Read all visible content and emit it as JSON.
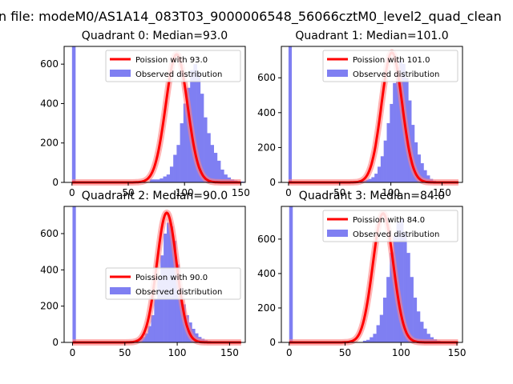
{
  "figure_title": "n file: modeM0/AS1A14_083T03_9000006548_56066cztM0_level2_quad_clean",
  "colors": {
    "hist_fill": "#7f7ff2",
    "curve": "#ff0000",
    "curve_glow": "#ff8080",
    "axis": "#000000",
    "legend_border": "#cccccc"
  },
  "chart_data": [
    {
      "type": "bar",
      "title": "Quadrant 0: Median=93.0",
      "median": 93.0,
      "legend": [
        "Poission with 93.0",
        "Observed distribution"
      ],
      "legend_position": "upper-right",
      "xlim": [
        -7,
        154
      ],
      "ylim": [
        0,
        690
      ],
      "xticks": [
        0,
        50,
        100,
        150
      ],
      "yticks": [
        0,
        200,
        400,
        600
      ],
      "bins": {
        "start": 0,
        "width": 3,
        "counts": [
          690,
          0,
          0,
          0,
          0,
          0,
          0,
          0,
          0,
          0,
          0,
          0,
          0,
          0,
          0,
          0,
          0,
          0,
          0,
          0,
          0,
          0,
          0,
          15,
          15,
          15,
          20,
          30,
          40,
          80,
          140,
          190,
          300,
          400,
          480,
          570,
          600,
          560,
          450,
          330,
          250,
          190,
          150,
          110,
          65,
          40,
          25,
          15,
          10,
          6,
          4
        ]
      },
      "poisson_mean": 93.0,
      "poisson_peak": 650
    },
    {
      "type": "bar",
      "title": "Quadrant 1: Median=101.0",
      "median": 101.0,
      "legend": [
        "Poission with 101.0",
        "Observed distribution"
      ],
      "legend_position": "upper-right",
      "xlim": [
        -7,
        170
      ],
      "ylim": [
        0,
        780
      ],
      "xticks": [
        0,
        50,
        100,
        150
      ],
      "yticks": [
        0,
        200,
        400,
        600
      ],
      "bins": {
        "start": 0,
        "width": 3,
        "counts": [
          780,
          0,
          0,
          0,
          0,
          0,
          0,
          0,
          0,
          0,
          0,
          0,
          0,
          0,
          0,
          0,
          0,
          0,
          0,
          0,
          0,
          0,
          0,
          0,
          10,
          15,
          20,
          30,
          50,
          90,
          150,
          240,
          340,
          450,
          570,
          660,
          700,
          680,
          600,
          470,
          330,
          230,
          160,
          110,
          70,
          40,
          20,
          10,
          6,
          4,
          3,
          2,
          2,
          1,
          1,
          1
        ]
      },
      "poisson_mean": 101.0,
      "poisson_peak": 745
    },
    {
      "type": "bar",
      "title": "Quadrant 2: Median=90.0",
      "median": 90.0,
      "legend": [
        "Poission with 90.0",
        "Observed distribution"
      ],
      "legend_position": "center-right",
      "xlim": [
        -8,
        165
      ],
      "ylim": [
        0,
        750
      ],
      "xticks": [
        0,
        50,
        100,
        150
      ],
      "yticks": [
        0,
        200,
        400,
        600
      ],
      "bins": {
        "start": 0,
        "width": 3,
        "counts": [
          750,
          0,
          0,
          0,
          0,
          0,
          0,
          0,
          0,
          0,
          0,
          0,
          0,
          0,
          0,
          0,
          0,
          0,
          0,
          0,
          15,
          20,
          30,
          50,
          90,
          150,
          240,
          360,
          480,
          600,
          660,
          640,
          560,
          430,
          300,
          210,
          150,
          110,
          75,
          50,
          30,
          20,
          12,
          8,
          6,
          4,
          3,
          2,
          1,
          1,
          1,
          1
        ]
      },
      "poisson_mean": 90.0,
      "poisson_peak": 715
    },
    {
      "type": "bar",
      "title": "Quadrant 3: Median=84.0",
      "median": 84.0,
      "legend": [
        "Poission with 84.0",
        "Observed distribution"
      ],
      "legend_position": "upper-right",
      "xlim": [
        -7,
        155
      ],
      "ylim": [
        0,
        790
      ],
      "xticks": [
        0,
        50,
        100,
        150
      ],
      "yticks": [
        0,
        200,
        400,
        600
      ],
      "bins": {
        "start": 0,
        "width": 3,
        "counts": [
          790,
          0,
          0,
          0,
          0,
          0,
          0,
          0,
          0,
          0,
          0,
          0,
          0,
          0,
          0,
          0,
          0,
          0,
          0,
          0,
          0,
          0,
          10,
          15,
          30,
          50,
          100,
          160,
          260,
          380,
          520,
          620,
          700,
          720,
          640,
          520,
          380,
          260,
          180,
          120,
          80,
          50,
          30,
          18,
          10,
          6,
          4,
          3,
          2,
          1
        ]
      },
      "poisson_mean": 84.0,
      "poisson_peak": 750
    }
  ]
}
